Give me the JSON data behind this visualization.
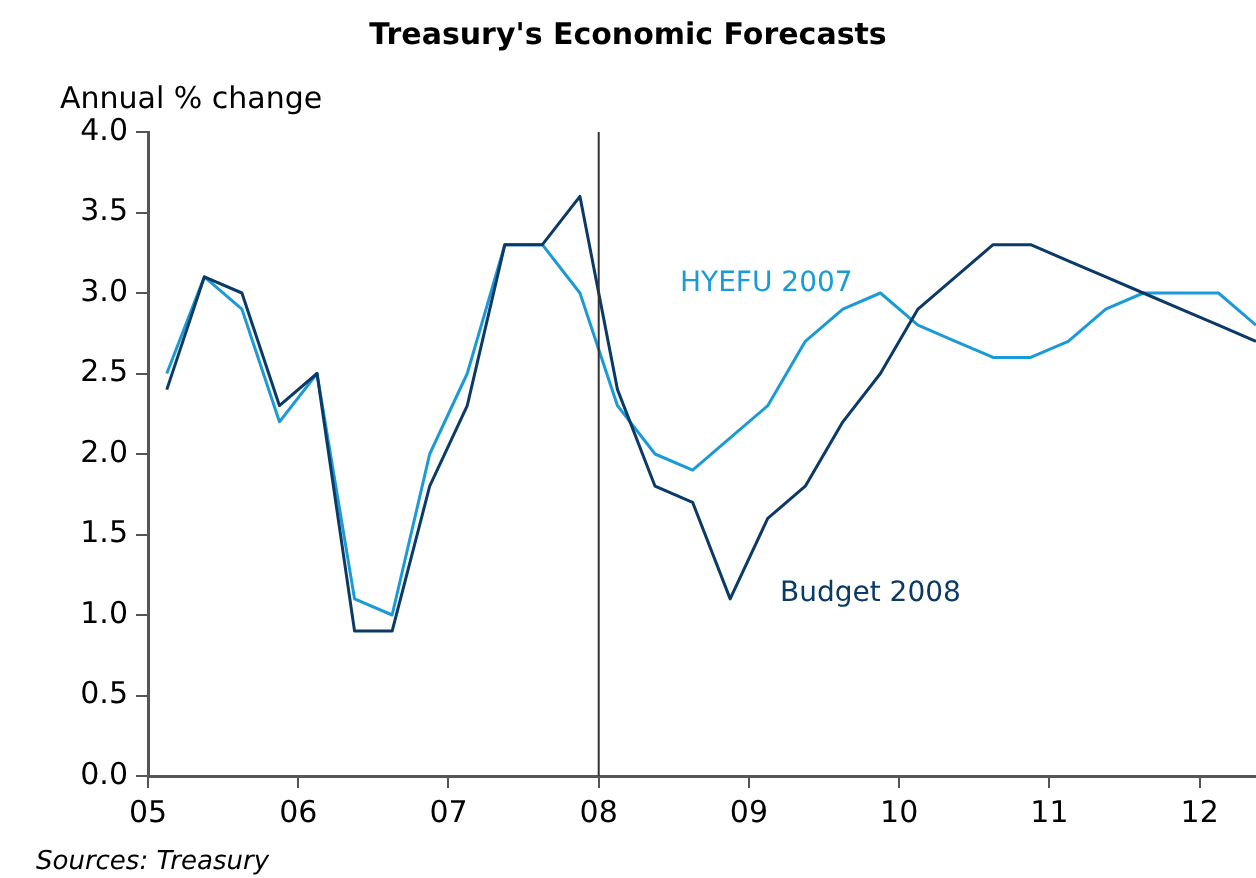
{
  "chart_data": {
    "type": "line",
    "title": "Treasury's Economic Forecasts",
    "ylabel": "Annual % change",
    "x": [
      2005.125,
      2005.375,
      2005.625,
      2005.875,
      2006.125,
      2006.375,
      2006.625,
      2006.875,
      2007.125,
      2007.375,
      2007.625,
      2007.875,
      2008.125,
      2008.375,
      2008.625,
      2008.875,
      2009.125,
      2009.375,
      2009.625,
      2009.875,
      2010.125,
      2010.375,
      2010.625,
      2010.875,
      2011.125,
      2011.375,
      2011.625,
      2011.875,
      2012.125,
      2012.375
    ],
    "series": [
      {
        "name": "Budget 2008",
        "color": "#0b3a66",
        "values": [
          2.4,
          3.1,
          3.0,
          2.3,
          2.5,
          0.9,
          0.9,
          1.8,
          2.3,
          3.3,
          3.3,
          3.6,
          2.4,
          1.8,
          1.7,
          1.1,
          1.6,
          1.8,
          2.2,
          2.5,
          2.9,
          3.1,
          3.3,
          3.3,
          3.2,
          3.1,
          3.0,
          2.9,
          2.8,
          2.7
        ]
      },
      {
        "name": "HYEFU 2007",
        "color": "#1a9ad6",
        "values": [
          2.5,
          3.1,
          2.9,
          2.2,
          2.5,
          1.1,
          1.0,
          2.0,
          2.5,
          3.3,
          3.3,
          3.0,
          2.3,
          2.0,
          1.9,
          2.1,
          2.3,
          2.7,
          2.9,
          3.0,
          2.8,
          2.7,
          2.6,
          2.6,
          2.7,
          2.9,
          3.0,
          3.0,
          3.0,
          2.8
        ]
      }
    ],
    "xlim": [
      2005,
      2012.375
    ],
    "xticks": [
      {
        "value": 2005,
        "label": "05"
      },
      {
        "value": 2006,
        "label": "06"
      },
      {
        "value": 2007,
        "label": "07"
      },
      {
        "value": 2008,
        "label": "08"
      },
      {
        "value": 2009,
        "label": "09"
      },
      {
        "value": 2010,
        "label": "10"
      },
      {
        "value": 2011,
        "label": "11"
      },
      {
        "value": 2012,
        "label": "12"
      }
    ],
    "ylim": [
      0,
      4
    ],
    "yticks": [
      {
        "value": 0,
        "label": "0.0"
      },
      {
        "value": 0.5,
        "label": "0.5"
      },
      {
        "value": 1,
        "label": "1.0"
      },
      {
        "value": 1.5,
        "label": "1.5"
      },
      {
        "value": 2,
        "label": "2.0"
      },
      {
        "value": 2.5,
        "label": "2.5"
      },
      {
        "value": 3,
        "label": "3.0"
      },
      {
        "value": 3.5,
        "label": "3.5"
      },
      {
        "value": 4,
        "label": "4.0"
      }
    ],
    "ref_lines": [
      {
        "axis": "x",
        "value": 2008,
        "color": "#333333"
      }
    ],
    "grid": false,
    "legend": false,
    "marker": "none",
    "line_style": "solid",
    "annotations": [
      "Sources: Treasury"
    ]
  }
}
